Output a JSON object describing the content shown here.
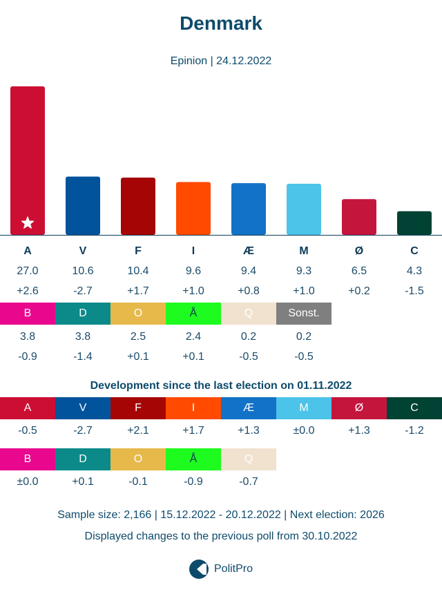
{
  "title": "Denmark",
  "subtitle": "Epinion | 24.12.2022",
  "chart_data": {
    "type": "bar",
    "parties": [
      {
        "label": "A",
        "value": 27.0,
        "value_text": "27.0",
        "change": "+2.6",
        "color": "#cc0e33",
        "leader": true
      },
      {
        "label": "V",
        "value": 10.6,
        "value_text": "10.6",
        "change": "-2.7",
        "color": "#01539b"
      },
      {
        "label": "F",
        "value": 10.4,
        "value_text": "10.4",
        "change": "+1.7",
        "color": "#a50505"
      },
      {
        "label": "I",
        "value": 9.6,
        "value_text": "9.6",
        "change": "+1.0",
        "color": "#ff4a00"
      },
      {
        "label": "Æ",
        "value": 9.4,
        "value_text": "9.4",
        "change": "+0.8",
        "color": "#1272c7"
      },
      {
        "label": "M",
        "value": 9.3,
        "value_text": "9.3",
        "change": "+1.0",
        "color": "#4cc3e8"
      },
      {
        "label": "Ø",
        "value": 6.5,
        "value_text": "6.5",
        "change": "+0.2",
        "color": "#c4153d"
      },
      {
        "label": "C",
        "value": 4.3,
        "value_text": "4.3",
        "change": "-1.5",
        "color": "#004233"
      }
    ],
    "small_parties": [
      {
        "label": "B",
        "value": 3.8,
        "value_text": "3.8",
        "change": "-0.9",
        "color": "#e8078d",
        "text_color": "#ffffff"
      },
      {
        "label": "D",
        "value": 3.8,
        "value_text": "3.8",
        "change": "-1.4",
        "color": "#0c8a8a",
        "text_color": "#ffffff"
      },
      {
        "label": "O",
        "value": 2.5,
        "value_text": "2.5",
        "change": "+0.1",
        "color": "#e7b94a",
        "text_color": "#ffffff"
      },
      {
        "label": "Å",
        "value": 2.4,
        "value_text": "2.4",
        "change": "+0.1",
        "color": "#1efb1e",
        "text_color": "#0d3b57"
      },
      {
        "label": "Q",
        "value": 0.2,
        "value_text": "0.2",
        "change": "-0.5",
        "color": "#f0e2cf",
        "text_color": "#ffffff"
      },
      {
        "label": "Sonst.",
        "value": 0.2,
        "value_text": "0.2",
        "change": "-0.5",
        "color": "#7f7f7f",
        "text_color": "#ffffff"
      }
    ],
    "ylim": [
      0,
      27.0
    ]
  },
  "development": {
    "title": "Development since the last election on 01.11.2022",
    "row1": [
      {
        "label": "A",
        "change": "-0.5",
        "color": "#cc0e33",
        "text_color": "#ffffff"
      },
      {
        "label": "V",
        "change": "-2.7",
        "color": "#01539b",
        "text_color": "#ffffff"
      },
      {
        "label": "F",
        "change": "+2.1",
        "color": "#a50505",
        "text_color": "#ffffff"
      },
      {
        "label": "I",
        "change": "+1.7",
        "color": "#ff4a00",
        "text_color": "#ffffff"
      },
      {
        "label": "Æ",
        "change": "+1.3",
        "color": "#1272c7",
        "text_color": "#ffffff"
      },
      {
        "label": "M",
        "change": "±0.0",
        "color": "#4cc3e8",
        "text_color": "#ffffff"
      },
      {
        "label": "Ø",
        "change": "+1.3",
        "color": "#c4153d",
        "text_color": "#ffffff"
      },
      {
        "label": "C",
        "change": "-1.2",
        "color": "#004233",
        "text_color": "#ffffff"
      }
    ],
    "row2": [
      {
        "label": "B",
        "change": "±0.0",
        "color": "#e8078d",
        "text_color": "#ffffff"
      },
      {
        "label": "D",
        "change": "+0.1",
        "color": "#0c8a8a",
        "text_color": "#ffffff"
      },
      {
        "label": "O",
        "change": "-0.1",
        "color": "#e7b94a",
        "text_color": "#ffffff"
      },
      {
        "label": "Å",
        "change": "-0.9",
        "color": "#1efb1e",
        "text_color": "#0d3b57"
      },
      {
        "label": "Q",
        "change": "-0.7",
        "color": "#f0e2cf",
        "text_color": "#ffffff"
      }
    ]
  },
  "footer": {
    "line1": "Sample size: 2,166 | 15.12.2022 - 20.12.2022 | Next election: 2026",
    "line2": "Displayed changes to the previous poll from 30.10.2022"
  },
  "brand": {
    "name": "PolitPro",
    "icon": "politpro-logo-icon",
    "color": "#0d4a6b"
  }
}
